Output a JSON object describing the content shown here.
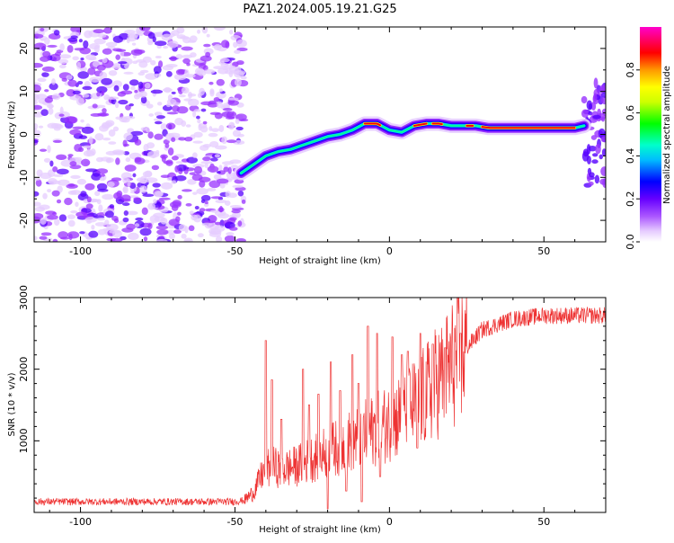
{
  "title": "PAZ1.2024.005.19.21.G25",
  "chart_data": [
    {
      "type": "heatmap",
      "xlabel": "Height of straight line (km)",
      "ylabel": "Frequency (Hz)",
      "xlim": [
        -115,
        70
      ],
      "ylim": [
        -25,
        25
      ],
      "xticks": [
        -100,
        -50,
        0,
        50
      ],
      "yticks": [
        -20,
        -10,
        0,
        10,
        20
      ],
      "colorbar": {
        "label": "Normalized spectral amplitude",
        "range": [
          0,
          1
        ],
        "ticks": [
          "0.0",
          "0.2",
          "0.4",
          "0.6",
          "0.8"
        ]
      },
      "colormap": [
        "#ffffff",
        "#e6ccff",
        "#9933ff",
        "#5500ff",
        "#0000ff",
        "#00ccff",
        "#00ff99",
        "#00ff00",
        "#ffff00",
        "#ff9900",
        "#ff0000",
        "#ff00cc"
      ],
      "ridge": {
        "x": [
          -48,
          -44,
          -40,
          -36,
          -32,
          -28,
          -24,
          -20,
          -16,
          -12,
          -8,
          -4,
          0,
          4,
          8,
          12,
          16,
          20,
          24,
          28,
          32,
          36,
          40,
          44,
          48,
          52,
          56,
          60,
          63
        ],
        "y": [
          -9,
          -7,
          -5,
          -4,
          -3.5,
          -2.5,
          -1.5,
          -0.5,
          0,
          1,
          2.5,
          2.5,
          1,
          0.5,
          2,
          2.5,
          2.5,
          2,
          2,
          2,
          1.5,
          1.5,
          1.5,
          1.5,
          1.5,
          1.5,
          1.5,
          1.5,
          2
        ]
      }
    },
    {
      "type": "line",
      "xlabel": "Height of straight line (km)",
      "ylabel": "SNR (10 * v/v)",
      "xlim": [
        -115,
        70
      ],
      "ylim": [
        0,
        3000
      ],
      "xticks": [
        -100,
        -50,
        0,
        50
      ],
      "yticks": [
        1000,
        2000,
        3000
      ],
      "color": "#ee3333",
      "envelope": {
        "x": [
          -115,
          -55,
          -50,
          -47,
          -44,
          -41,
          -38,
          -35,
          -30,
          -25,
          -20,
          -15,
          -10,
          -5,
          0,
          5,
          10,
          15,
          20,
          25,
          30,
          40,
          50,
          60,
          70
        ],
        "y": [
          150,
          150,
          150,
          170,
          280,
          550,
          650,
          600,
          650,
          750,
          850,
          950,
          1050,
          1150,
          1250,
          1400,
          1550,
          1800,
          2050,
          2300,
          2550,
          2700,
          2750,
          2750,
          2750
        ]
      },
      "spikes": [
        [
          -40,
          2400
        ],
        [
          -38,
          1850
        ],
        [
          -35,
          1300
        ],
        [
          -28,
          2000
        ],
        [
          -26,
          1500
        ],
        [
          -23,
          1650
        ],
        [
          -19,
          2100
        ],
        [
          -16,
          1700
        ],
        [
          -12,
          2200
        ],
        [
          -10,
          1800
        ],
        [
          -7,
          2600
        ],
        [
          -4,
          2500
        ],
        [
          1,
          2450
        ],
        [
          4,
          2200
        ],
        [
          6,
          2250
        ],
        [
          10,
          2500
        ],
        [
          14,
          2350
        ],
        [
          18,
          2300
        ],
        [
          23,
          2500
        ]
      ],
      "dips": [
        [
          -20,
          50
        ],
        [
          -14,
          300
        ],
        [
          -9,
          150
        ],
        [
          -3,
          500
        ],
        [
          9,
          900
        ]
      ]
    }
  ]
}
